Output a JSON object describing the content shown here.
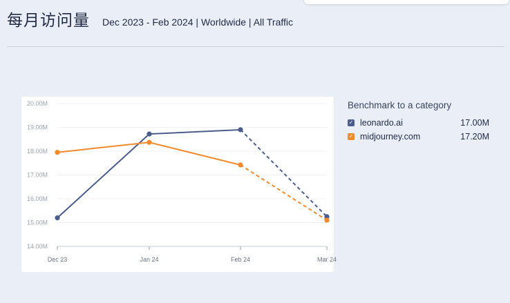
{
  "header": {
    "title": "每月访问量",
    "subtitle": "Dec 2023 - Feb 2024 | Worldwide | All Traffic"
  },
  "legend": {
    "title": "Benchmark to a category",
    "items": [
      {
        "name": "leonardo.ai",
        "value": "17.00M",
        "color": "#4b5d8c",
        "check": "✓"
      },
      {
        "name": "midjourney.com",
        "value": "17.20M",
        "color": "#f18a2c",
        "check": "✓"
      }
    ]
  },
  "colors": {
    "series1": "#4b5d8c",
    "series2": "#f18a2c"
  },
  "chart_data": {
    "type": "line",
    "categories": [
      "Dec 23",
      "Jan 24",
      "Feb 24",
      "Mar 24"
    ],
    "y_ticks": [
      "14.00M",
      "15.00M",
      "16.00M",
      "17.00M",
      "18.00M",
      "19.00M",
      "20.00M"
    ],
    "ylim": [
      14,
      20
    ],
    "y_unit": "M",
    "projected_from_index": 2,
    "grid": true,
    "legend_placement": "right",
    "series": [
      {
        "name": "leonardo.ai",
        "values": [
          15.2,
          18.72,
          18.9,
          15.25
        ]
      },
      {
        "name": "midjourney.com",
        "values": [
          17.95,
          18.37,
          17.42,
          15.1
        ]
      }
    ]
  }
}
